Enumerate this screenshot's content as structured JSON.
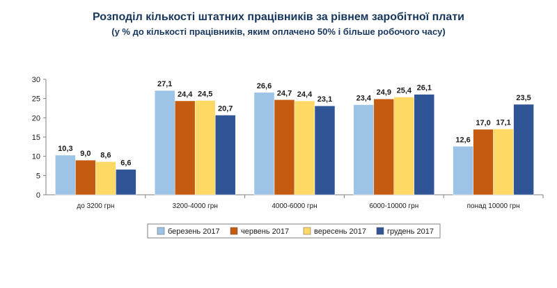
{
  "chart_data": {
    "type": "bar",
    "title": "Розподіл кількості штатних працівників за рівнем заробітної плати",
    "subtitle": "(у % до кількості працівників, яким оплачено 50% і більше робочого часу)",
    "categories": [
      "до 3200 грн",
      "3200-4000 грн",
      "4000-6000 грн",
      "6000-10000 грн",
      "понад 10000 грн"
    ],
    "series": [
      {
        "name": "березень 2017",
        "values": [
          10.3,
          27.1,
          26.6,
          23.4,
          12.6
        ],
        "color": "#9dc3e6"
      },
      {
        "name": "червень 2017",
        "values": [
          9.0,
          24.4,
          24.7,
          24.9,
          17.0
        ],
        "color": "#c55a11"
      },
      {
        "name": "вересень 2017",
        "values": [
          8.6,
          24.5,
          24.4,
          25.4,
          17.1
        ],
        "color": "#ffd966"
      },
      {
        "name": "грудень 2017",
        "values": [
          6.6,
          20.7,
          23.1,
          26.1,
          23.5
        ],
        "color": "#2f5597"
      }
    ],
    "value_labels": [
      [
        "10,3",
        "27,1",
        "26,6",
        "23,4",
        "12,6"
      ],
      [
        "9,0",
        "24,4",
        "24,7",
        "24,9",
        "17,0"
      ],
      [
        "8,6",
        "24,5",
        "24,4",
        "25,4",
        "17,1"
      ],
      [
        "6,6",
        "20,7",
        "23,1",
        "26,1",
        "23,5"
      ]
    ],
    "yticks": [
      0,
      5,
      10,
      15,
      20,
      25,
      30
    ],
    "ylim": [
      0,
      30
    ],
    "grid": false,
    "legend": "bottom"
  }
}
